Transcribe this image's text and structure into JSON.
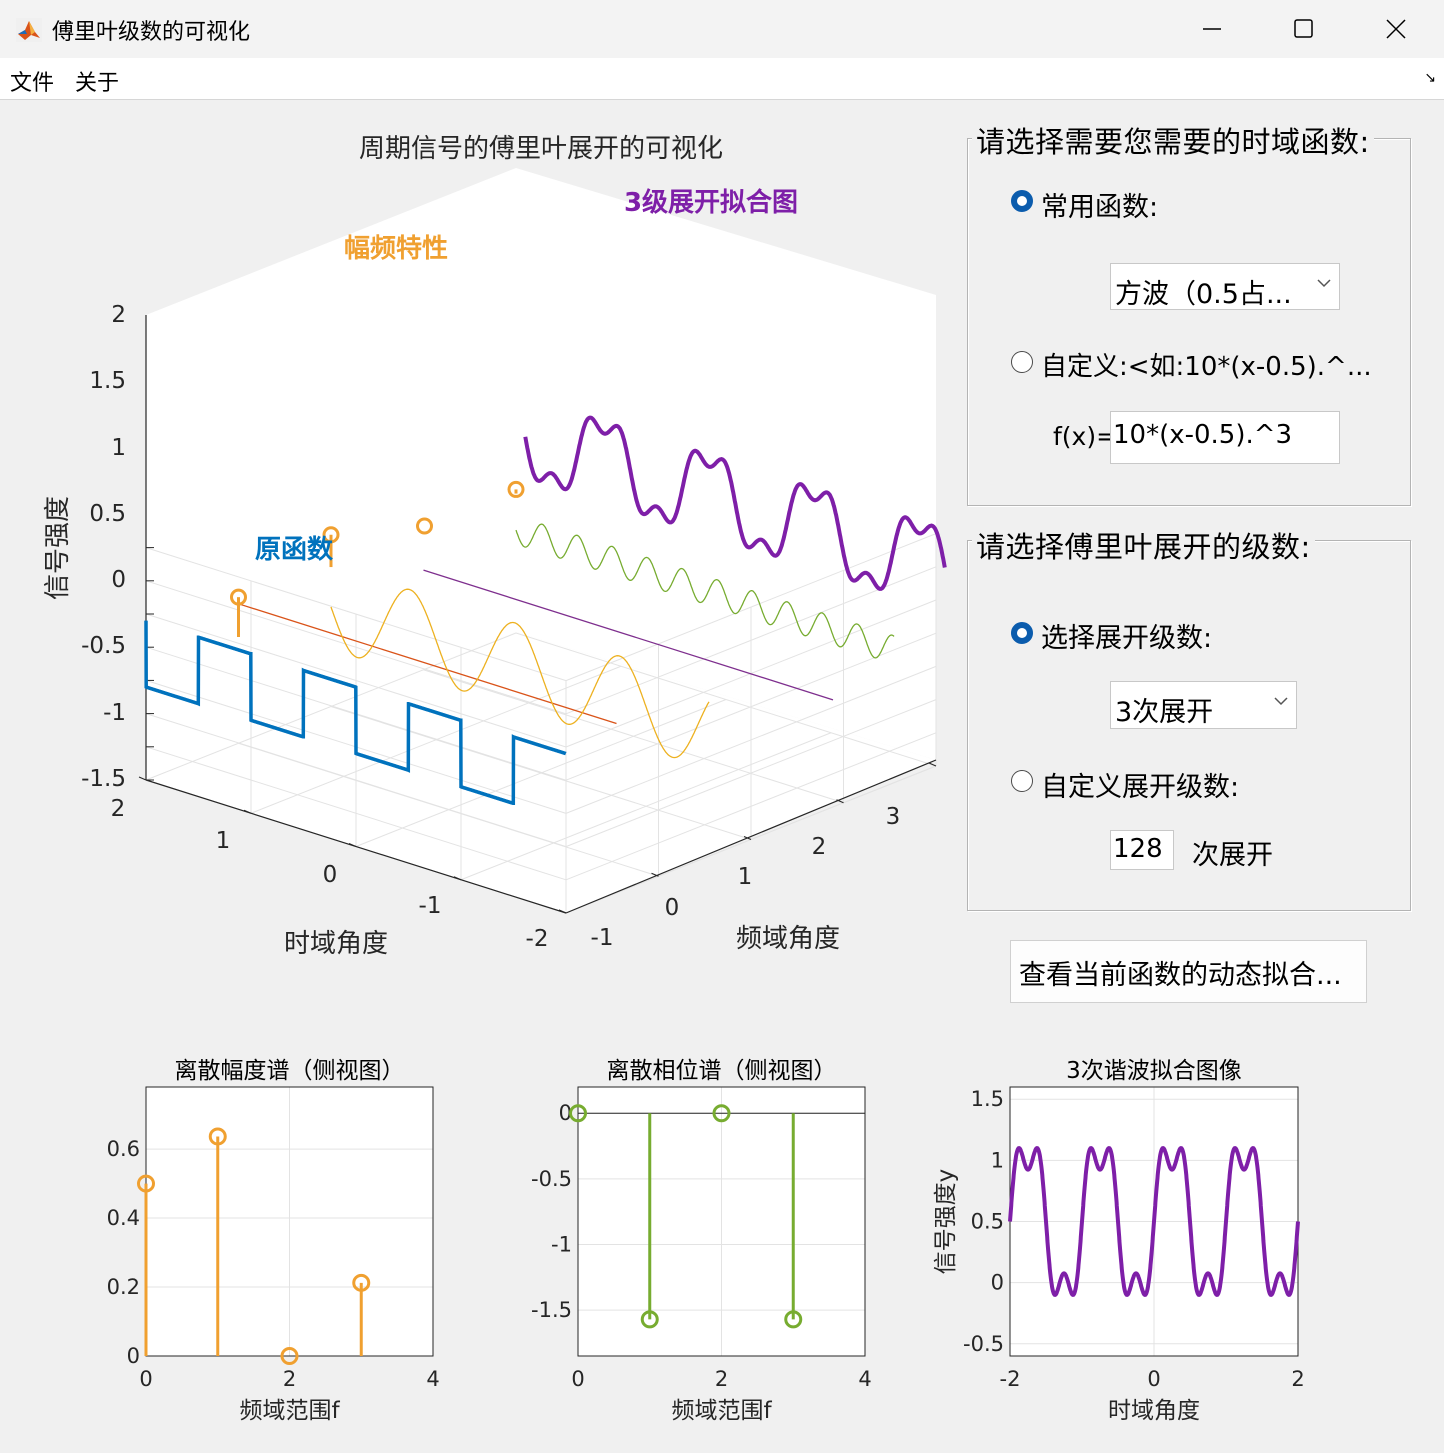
{
  "window": {
    "title": "傅里叶级数的可视化",
    "controls": [
      "minimize",
      "maximize",
      "close"
    ]
  },
  "menu": {
    "items": [
      "文件",
      "关于"
    ]
  },
  "main_plot": {
    "title": "周期信号的傅里叶展开的可视化",
    "label_spectrum": "幅频特性",
    "label_fit": "3级展开拟合图",
    "label_original": "原函数",
    "zlabel": "信号强度",
    "xlabel": "时域角度",
    "ylabel": "频域角度",
    "z_ticks": [
      "2",
      "1.5",
      "1",
      "0.5",
      "0",
      "-0.5",
      "-1",
      "-1.5"
    ],
    "x_ticks": [
      "2",
      "1",
      "0",
      "-1",
      "-2"
    ],
    "y_ticks": [
      "-1",
      "0",
      "1",
      "2",
      "3"
    ]
  },
  "panel_function": {
    "title": "请选择需要您需要的时域函数:",
    "option_common": "常用函数:",
    "common_selected": "方波（0.5占...",
    "option_custom": "自定义:<如:10*(x-0.5).^...",
    "fx_label": "f(x)=",
    "fx_value": "10*(x-0.5).^3"
  },
  "panel_order": {
    "title": "请选择傅里叶展开的级数:",
    "option_select": "选择展开级数:",
    "order_selected": "3次展开",
    "option_custom": "自定义展开级数:",
    "custom_value": "128",
    "custom_suffix": "次展开"
  },
  "animate_button": "查看当前函数的动态拟合...",
  "chart_data": [
    {
      "type": "line",
      "title": "周期信号的傅里叶展开的可视化",
      "view": "3d",
      "xlabel": "时域角度",
      "ylabel": "频域角度",
      "zlabel": "信号强度",
      "xlim": [
        -2,
        2
      ],
      "ylim": [
        -1,
        3
      ],
      "zlim": [
        -1.5,
        2
      ],
      "series": [
        {
          "name": "原函数",
          "description": "square wave, 0.5 duty, values 0 and 1, period 1",
          "color": "#0072bd"
        },
        {
          "name": "幅频特性",
          "description": "amplitude stems at k=0..3",
          "color": "#edb120"
        },
        {
          "name": "3级展开拟合图",
          "description": "3-harmonic fit",
          "color": "#7e2f8e"
        }
      ],
      "grid": true
    },
    {
      "type": "stem",
      "title": "离散幅度谱（侧视图）",
      "xlabel": "频域范围f",
      "x": [
        0,
        1,
        2,
        3
      ],
      "values": [
        0.5,
        0.6366,
        0,
        0.2122
      ],
      "xlim": [
        0,
        4
      ],
      "ylim": [
        0,
        0.78
      ],
      "x_ticks": [
        "0",
        "2",
        "4"
      ],
      "y_ticks": [
        "0",
        "0.2",
        "0.4",
        "0.6"
      ],
      "color": "#f0a030",
      "grid": true
    },
    {
      "type": "stem",
      "title": "离散相位谱（侧视图）",
      "xlabel": "频域范围f",
      "x": [
        0,
        1,
        2,
        3
      ],
      "values": [
        0,
        -1.5708,
        0,
        -1.5708
      ],
      "xlim": [
        0,
        4
      ],
      "ylim": [
        -1.85,
        0.2
      ],
      "x_ticks": [
        "0",
        "2",
        "4"
      ],
      "y_ticks": [
        "0",
        "-0.5",
        "-1",
        "-1.5"
      ],
      "color": "#77ac30",
      "grid": true
    },
    {
      "type": "line",
      "title": "3次谐波拟合图像",
      "xlabel": "时域角度",
      "ylabel": "信号强度y",
      "function": "0.5 + (2/pi)*sin(2*pi*x) + (2/(3*pi))*sin(6*pi*x)",
      "xlim": [
        -2,
        2
      ],
      "ylim": [
        -0.6,
        1.6
      ],
      "x_ticks": [
        "-2",
        "0",
        "2"
      ],
      "y_ticks": [
        "1.5",
        "1",
        "0.5",
        "0",
        "-0.5"
      ],
      "color": "#7e1fa8",
      "grid": true
    }
  ],
  "colors": {
    "blue": "#0072bd",
    "orange": "#f0a030",
    "yellow": "#edb120",
    "red": "#d95319",
    "purple": "#7e1fa8",
    "green": "#77ac30",
    "radio_selected": "#0b5cad"
  }
}
